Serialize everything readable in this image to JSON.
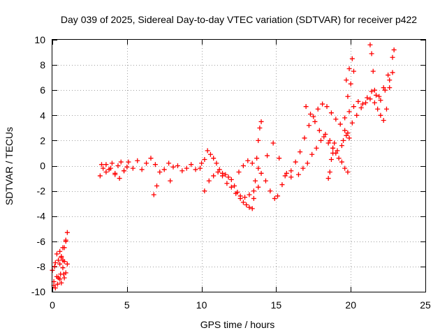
{
  "chart_data": {
    "type": "scatter",
    "title": "Day 039 of 2025, Sidereal Day-to-day VTEC variation (SDTVAR) for receiver p422",
    "xlabel": "GPS time / hours",
    "ylabel": "SDTVAR / TECUs",
    "xlim": [
      0,
      25
    ],
    "ylim": [
      -10,
      10
    ],
    "xticks": [
      0,
      5,
      10,
      15,
      20,
      25
    ],
    "yticks": [
      -10,
      -8,
      -6,
      -4,
      -2,
      0,
      2,
      4,
      6,
      8,
      10
    ],
    "grid": true,
    "marker": "+",
    "color": "#ff0000",
    "series": [
      {
        "name": "SDTVAR",
        "x": [
          0.0,
          0.1,
          0.2,
          0.3,
          0.35,
          0.4,
          0.5,
          0.55,
          0.6,
          0.7,
          0.75,
          0.8,
          0.9,
          1.0,
          1.0,
          0.9,
          0.8,
          0.7,
          0.6,
          0.5,
          0.4,
          0.3,
          0.2,
          0.15,
          0.1,
          0.5,
          0.6,
          0.7,
          0.8,
          0.9,
          3.2,
          3.4,
          3.6,
          3.8,
          4.0,
          4.2,
          4.4,
          4.6,
          4.8,
          5.0,
          3.3,
          3.6,
          3.9,
          4.2,
          4.5,
          4.8,
          5.1,
          5.4,
          5.7,
          6.0,
          6.3,
          6.6,
          6.9,
          7.2,
          7.5,
          7.8,
          8.1,
          8.4,
          8.7,
          9.0,
          9.3,
          9.6,
          9.9,
          6.8,
          7.0,
          7.9,
          10.0,
          10.2,
          10.4,
          10.6,
          10.8,
          11.0,
          11.2,
          11.4,
          11.6,
          11.8,
          12.0,
          12.2,
          12.4,
          12.6,
          12.8,
          13.0,
          13.2,
          13.4,
          13.5,
          13.6,
          13.7,
          13.8,
          13.9,
          14.0,
          10.2,
          10.5,
          10.8,
          11.1,
          11.4,
          11.7,
          12.0,
          12.3,
          12.6,
          12.9,
          13.2,
          13.5,
          13.8,
          12.5,
          12.8,
          13.1,
          13.4,
          13.8,
          14.0,
          14.3,
          14.6,
          14.9,
          15.1,
          15.4,
          15.7,
          16.0,
          14.4,
          14.8,
          15.2,
          15.6,
          16.0,
          16.3,
          16.6,
          16.9,
          17.2,
          17.5,
          17.8,
          18.1,
          18.4,
          18.7,
          19.0,
          19.3,
          19.6,
          19.9,
          16.5,
          16.8,
          17.1,
          17.4,
          17.7,
          18.0,
          18.3,
          18.6,
          18.8,
          19.0,
          19.2,
          19.4,
          19.6,
          19.8,
          17.0,
          17.3,
          17.6,
          17.9,
          18.2,
          18.5,
          18.8,
          19.1,
          19.4,
          19.7,
          18.5,
          18.6,
          18.7,
          18.8,
          18.9,
          19.5,
          19.8,
          20.1,
          20.4,
          20.7,
          21.0,
          21.3,
          21.6,
          21.9,
          22.2,
          22.5,
          22.8,
          19.6,
          19.9,
          20.2,
          20.5,
          20.8,
          21.1,
          21.4,
          21.7,
          22.0,
          22.3,
          22.6,
          22.9,
          21.3,
          21.4,
          21.5,
          21.6,
          21.8,
          22.0,
          22.2,
          22.4,
          22.6,
          22.8,
          19.8,
          20.0,
          20.2,
          19.7,
          19.9,
          20.1
        ],
        "y": [
          -8.3,
          -9.5,
          -9.7,
          -8.8,
          -9.4,
          -8.9,
          -9.0,
          -8.6,
          -9.3,
          -8.1,
          -8.6,
          -8.9,
          -8.5,
          -7.8,
          -5.3,
          -6.0,
          -6.5,
          -7.5,
          -7.2,
          -7.8,
          -7.5,
          -7.0,
          -7.7,
          -8.0,
          -9.2,
          -6.8,
          -7.3,
          -6.5,
          -7.6,
          -5.9,
          -0.8,
          -0.2,
          0.1,
          -0.3,
          0.2,
          -0.6,
          0.0,
          0.3,
          -0.4,
          -0.1,
          0.1,
          -0.5,
          -0.2,
          -0.7,
          -1.0,
          -0.4,
          0.3,
          -0.2,
          0.4,
          -0.3,
          0.2,
          0.6,
          0.1,
          -0.5,
          -0.3,
          0.2,
          -0.1,
          0.0,
          -0.4,
          -0.2,
          0.1,
          -0.3,
          -0.2,
          -2.3,
          -1.6,
          -1.2,
          0.2,
          0.5,
          1.2,
          0.9,
          0.6,
          0.2,
          -0.3,
          -0.6,
          -0.7,
          -0.9,
          -1.1,
          -1.6,
          -2.1,
          -2.6,
          -2.9,
          -3.1,
          -3.3,
          -3.4,
          -2.6,
          -1.2,
          0.6,
          2.0,
          3.0,
          3.5,
          -2.0,
          -1.2,
          -0.8,
          -0.5,
          -0.8,
          -1.4,
          -1.7,
          -2.2,
          -2.4,
          -2.5,
          -2.3,
          -2.0,
          -1.7,
          -0.5,
          0.0,
          0.4,
          0.2,
          -0.2,
          -0.6,
          -1.2,
          -2.0,
          -2.6,
          -2.4,
          -1.5,
          -0.6,
          -0.9,
          0.8,
          1.8,
          0.6,
          -0.8,
          -0.4,
          0.3,
          1.1,
          2.2,
          3.2,
          3.9,
          4.5,
          4.9,
          4.7,
          4.2,
          3.7,
          3.3,
          2.8,
          2.2,
          -0.7,
          -0.2,
          0.2,
          0.9,
          1.4,
          2.0,
          2.5,
          2.0,
          1.4,
          1.0,
          0.6,
          0.3,
          -0.2,
          -0.5,
          4.7,
          4.1,
          3.5,
          2.8,
          2.3,
          1.8,
          1.4,
          1.2,
          1.6,
          2.4,
          -1.0,
          -0.5,
          0.5,
          1.0,
          1.8,
          2.0,
          2.6,
          3.4,
          4.0,
          4.6,
          5.0,
          5.3,
          5.0,
          5.5,
          6.2,
          7.2,
          8.6,
          3.8,
          4.3,
          4.7,
          5.1,
          4.9,
          5.4,
          5.9,
          5.6,
          5.2,
          6.0,
          6.8,
          9.2,
          9.6,
          8.9,
          7.5,
          6.0,
          4.5,
          4.0,
          3.6,
          4.5,
          6.2,
          7.4,
          5.5,
          6.5,
          7.5,
          6.8,
          7.7,
          8.5
        ]
      }
    ]
  }
}
